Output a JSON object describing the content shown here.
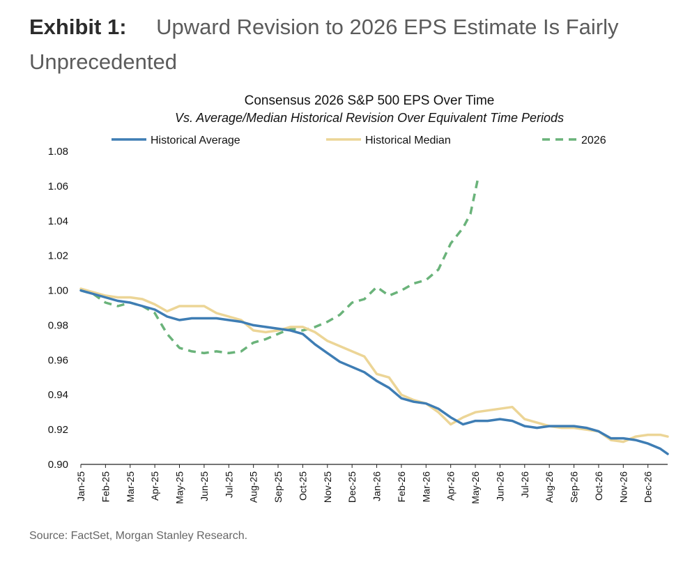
{
  "exhibit": {
    "label": "Exhibit 1:",
    "title": "Upward Revision to 2026 EPS Estimate Is Fairly Unprecedented"
  },
  "source": "Source: FactSet, Morgan Stanley Research.",
  "colors": {
    "historical_average": "#3e7db4",
    "historical_median": "#ecd596",
    "y2026": "#6ab37a"
  },
  "chart_data": {
    "type": "line",
    "title": "Consensus 2026 S&P 500 EPS Over Time",
    "subtitle": "Vs. Average/Median Historical Revision Over Equivalent Time Periods",
    "xlabel": "",
    "ylabel": "",
    "ylim": [
      0.9,
      1.08
    ],
    "yticks": [
      "0.90",
      "0.92",
      "0.94",
      "0.96",
      "0.98",
      "1.00",
      "1.02",
      "1.04",
      "1.06",
      "1.08"
    ],
    "ytick_values": [
      0.9,
      0.92,
      0.94,
      0.96,
      0.98,
      1.0,
      1.02,
      1.04,
      1.06,
      1.08
    ],
    "x_tick_labels": [
      "Jan-25",
      "Feb-25",
      "Mar-25",
      "Apr-25",
      "May-25",
      "Jun-25",
      "Jul-25",
      "Aug-25",
      "Sep-25",
      "Oct-25",
      "Nov-25",
      "Dec-25",
      "Jan-26",
      "Feb-26",
      "Mar-26",
      "Apr-26",
      "May-26",
      "Jun-26",
      "Jul-26",
      "Aug-26",
      "Sep-26",
      "Oct-26",
      "Nov-26",
      "Dec-26"
    ],
    "x_unit": "months since Jan-25",
    "legend_position": "top",
    "grid": false,
    "series": [
      {
        "name": "Historical Average",
        "style": "solid",
        "points": [
          [
            0,
            1.0
          ],
          [
            0.5,
            0.998
          ],
          [
            1,
            0.996
          ],
          [
            1.5,
            0.994
          ],
          [
            2,
            0.993
          ],
          [
            2.5,
            0.991
          ],
          [
            3,
            0.989
          ],
          [
            3.5,
            0.985
          ],
          [
            4,
            0.983
          ],
          [
            4.5,
            0.984
          ],
          [
            5,
            0.984
          ],
          [
            5.5,
            0.984
          ],
          [
            6,
            0.983
          ],
          [
            6.5,
            0.982
          ],
          [
            7,
            0.98
          ],
          [
            7.5,
            0.979
          ],
          [
            8,
            0.978
          ],
          [
            8.5,
            0.977
          ],
          [
            9,
            0.975
          ],
          [
            9.5,
            0.969
          ],
          [
            10,
            0.964
          ],
          [
            10.5,
            0.959
          ],
          [
            11,
            0.956
          ],
          [
            11.5,
            0.953
          ],
          [
            12,
            0.948
          ],
          [
            12.5,
            0.944
          ],
          [
            13,
            0.938
          ],
          [
            13.5,
            0.936
          ],
          [
            14,
            0.935
          ],
          [
            14.5,
            0.932
          ],
          [
            15,
            0.927
          ],
          [
            15.5,
            0.923
          ],
          [
            16,
            0.925
          ],
          [
            16.5,
            0.925
          ],
          [
            17,
            0.926
          ],
          [
            17.5,
            0.925
          ],
          [
            18,
            0.922
          ],
          [
            18.5,
            0.921
          ],
          [
            19,
            0.922
          ],
          [
            19.5,
            0.922
          ],
          [
            20,
            0.922
          ],
          [
            20.5,
            0.921
          ],
          [
            21,
            0.919
          ],
          [
            21.5,
            0.915
          ],
          [
            22,
            0.915
          ],
          [
            22.5,
            0.914
          ],
          [
            23,
            0.912
          ],
          [
            23.5,
            0.909
          ],
          [
            23.8,
            0.906
          ]
        ]
      },
      {
        "name": "Historical Median",
        "style": "solid",
        "points": [
          [
            0,
            1.001
          ],
          [
            0.5,
            0.999
          ],
          [
            1,
            0.997
          ],
          [
            1.5,
            0.996
          ],
          [
            2,
            0.996
          ],
          [
            2.5,
            0.995
          ],
          [
            3,
            0.992
          ],
          [
            3.5,
            0.988
          ],
          [
            4,
            0.991
          ],
          [
            4.5,
            0.991
          ],
          [
            5,
            0.991
          ],
          [
            5.5,
            0.987
          ],
          [
            6,
            0.985
          ],
          [
            6.5,
            0.983
          ],
          [
            7,
            0.977
          ],
          [
            7.5,
            0.976
          ],
          [
            8,
            0.977
          ],
          [
            8.5,
            0.979
          ],
          [
            9,
            0.979
          ],
          [
            9.5,
            0.976
          ],
          [
            10,
            0.971
          ],
          [
            10.5,
            0.968
          ],
          [
            11,
            0.965
          ],
          [
            11.5,
            0.962
          ],
          [
            12,
            0.952
          ],
          [
            12.5,
            0.95
          ],
          [
            13,
            0.94
          ],
          [
            13.5,
            0.937
          ],
          [
            14,
            0.935
          ],
          [
            14.5,
            0.93
          ],
          [
            15,
            0.923
          ],
          [
            15.5,
            0.927
          ],
          [
            16,
            0.93
          ],
          [
            16.5,
            0.931
          ],
          [
            17,
            0.932
          ],
          [
            17.5,
            0.933
          ],
          [
            18,
            0.926
          ],
          [
            18.5,
            0.924
          ],
          [
            19,
            0.922
          ],
          [
            19.5,
            0.921
          ],
          [
            20,
            0.921
          ],
          [
            20.5,
            0.92
          ],
          [
            21,
            0.919
          ],
          [
            21.5,
            0.914
          ],
          [
            22,
            0.913
          ],
          [
            22.5,
            0.916
          ],
          [
            23,
            0.917
          ],
          [
            23.5,
            0.917
          ],
          [
            23.8,
            0.916
          ]
        ]
      },
      {
        "name": "2026",
        "style": "dashed",
        "points": [
          [
            0,
            1.0
          ],
          [
            0.5,
            0.998
          ],
          [
            1,
            0.993
          ],
          [
            1.5,
            0.991
          ],
          [
            2,
            0.993
          ],
          [
            2.5,
            0.991
          ],
          [
            3,
            0.987
          ],
          [
            3.5,
            0.975
          ],
          [
            4,
            0.967
          ],
          [
            4.5,
            0.965
          ],
          [
            5,
            0.964
          ],
          [
            5.5,
            0.965
          ],
          [
            6,
            0.964
          ],
          [
            6.5,
            0.965
          ],
          [
            7,
            0.97
          ],
          [
            7.5,
            0.972
          ],
          [
            8,
            0.975
          ],
          [
            8.5,
            0.978
          ],
          [
            9,
            0.977
          ],
          [
            9.5,
            0.979
          ],
          [
            10,
            0.982
          ],
          [
            10.5,
            0.986
          ],
          [
            11,
            0.993
          ],
          [
            11.5,
            0.995
          ],
          [
            12,
            1.002
          ],
          [
            12.5,
            0.997
          ],
          [
            13,
            1.0
          ],
          [
            13.5,
            1.004
          ],
          [
            14,
            1.006
          ],
          [
            14.5,
            1.012
          ],
          [
            15,
            1.027
          ],
          [
            15.5,
            1.036
          ],
          [
            15.8,
            1.044
          ],
          [
            16.1,
            1.064
          ]
        ]
      }
    ]
  }
}
